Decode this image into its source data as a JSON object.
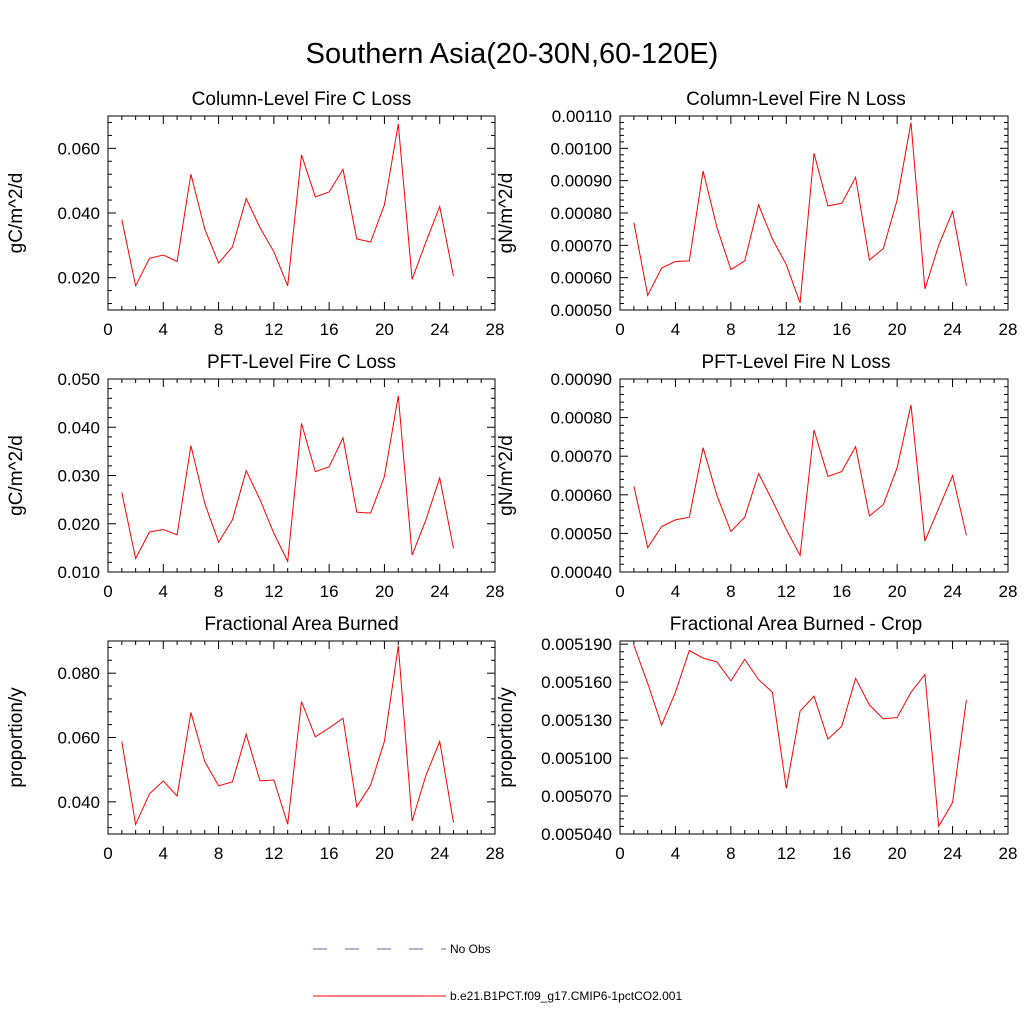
{
  "figure": {
    "title": "Southern Asia(20-30N,60-120E)"
  },
  "legend": [
    {
      "label": "No Obs",
      "color": "#6f6fa8",
      "dash": true
    },
    {
      "label": "b.e21.B1PCT.f09_g17.CMIP6-1pctCO2.001",
      "color": "#ff0000",
      "dash": false
    }
  ],
  "chart_data": [
    {
      "type": "line",
      "title": "Column-Level Fire C Loss",
      "ylabel": "gC/m^2/d",
      "xlim": [
        0,
        28
      ],
      "ylim": [
        0.01,
        0.07
      ],
      "xticks": [
        0,
        4,
        8,
        12,
        16,
        20,
        24,
        28
      ],
      "yticks": [
        0.02,
        0.04,
        0.06
      ],
      "ytick_labels": [
        "0.020",
        "0.040",
        "0.060"
      ],
      "x": [
        1,
        2,
        3,
        4,
        5,
        6,
        7,
        8,
        9,
        10,
        11,
        12,
        13,
        14,
        15,
        16,
        17,
        18,
        19,
        20,
        21,
        22,
        23,
        24,
        25
      ],
      "series": [
        {
          "name": "b.e21.B1PCT.f09_g17.CMIP6-1pctCO2.001",
          "color": "#ff0000",
          "values": [
            0.038,
            0.0175,
            0.026,
            0.027,
            0.025,
            0.052,
            0.035,
            0.0245,
            0.0295,
            0.0445,
            0.0355,
            0.028,
            0.0175,
            0.058,
            0.045,
            0.0465,
            0.0535,
            0.032,
            0.031,
            0.0425,
            0.0675,
            0.0195,
            0.031,
            0.042,
            0.0205
          ]
        }
      ]
    },
    {
      "type": "line",
      "title": "Column-Level Fire N Loss",
      "ylabel": "gN/m^2/d",
      "xlim": [
        0,
        28
      ],
      "ylim": [
        0.0005,
        0.0011
      ],
      "xticks": [
        0,
        4,
        8,
        12,
        16,
        20,
        24,
        28
      ],
      "yticks": [
        0.0005,
        0.0006,
        0.0007,
        0.0008,
        0.0009,
        0.001,
        0.0011
      ],
      "ytick_labels": [
        "0.00050",
        "0.00060",
        "0.00070",
        "0.00080",
        "0.00090",
        "0.00100",
        "0.00110"
      ],
      "x": [
        1,
        2,
        3,
        4,
        5,
        6,
        7,
        8,
        9,
        10,
        11,
        12,
        13,
        14,
        15,
        16,
        17,
        18,
        19,
        20,
        21,
        22,
        23,
        24,
        25
      ],
      "series": [
        {
          "name": "b.e21.B1PCT.f09_g17.CMIP6-1pctCO2.001",
          "color": "#ff0000",
          "values": [
            0.00077,
            0.000545,
            0.00063,
            0.00065,
            0.000652,
            0.00093,
            0.000755,
            0.000625,
            0.000652,
            0.000825,
            0.00072,
            0.00064,
            0.000522,
            0.000985,
            0.000822,
            0.00083,
            0.00091,
            0.000655,
            0.00069,
            0.00084,
            0.00108,
            0.000565,
            0.0007,
            0.000805,
            0.000575
          ]
        }
      ]
    },
    {
      "type": "line",
      "title": "PFT-Level Fire C Loss",
      "ylabel": "gC/m^2/d",
      "xlim": [
        0,
        28
      ],
      "ylim": [
        0.01,
        0.05
      ],
      "xticks": [
        0,
        4,
        8,
        12,
        16,
        20,
        24,
        28
      ],
      "yticks": [
        0.01,
        0.02,
        0.03,
        0.04,
        0.05
      ],
      "ytick_labels": [
        "0.010",
        "0.020",
        "0.030",
        "0.040",
        "0.050"
      ],
      "x": [
        1,
        2,
        3,
        4,
        5,
        6,
        7,
        8,
        9,
        10,
        11,
        12,
        13,
        14,
        15,
        16,
        17,
        18,
        19,
        20,
        21,
        22,
        23,
        24,
        25
      ],
      "series": [
        {
          "name": "b.e21.B1PCT.f09_g17.CMIP6-1pctCO2.001",
          "color": "#ff0000",
          "values": [
            0.0265,
            0.0128,
            0.0183,
            0.0188,
            0.0177,
            0.0362,
            0.0242,
            0.0162,
            0.0208,
            0.031,
            0.025,
            0.018,
            0.0122,
            0.0408,
            0.0308,
            0.0318,
            0.0378,
            0.0224,
            0.0222,
            0.0298,
            0.0465,
            0.0135,
            0.0208,
            0.0295,
            0.0149
          ]
        }
      ]
    },
    {
      "type": "line",
      "title": "PFT-Level Fire N Loss",
      "ylabel": "gN/m^2/d",
      "xlim": [
        0,
        28
      ],
      "ylim": [
        0.0004,
        0.0009
      ],
      "xticks": [
        0,
        4,
        8,
        12,
        16,
        20,
        24,
        28
      ],
      "yticks": [
        0.0004,
        0.0005,
        0.0006,
        0.0007,
        0.0008,
        0.0009
      ],
      "ytick_labels": [
        "0.00040",
        "0.00050",
        "0.00060",
        "0.00070",
        "0.00080",
        "0.00090"
      ],
      "x": [
        1,
        2,
        3,
        4,
        5,
        6,
        7,
        8,
        9,
        10,
        11,
        12,
        13,
        14,
        15,
        16,
        17,
        18,
        19,
        20,
        21,
        22,
        23,
        24,
        25
      ],
      "series": [
        {
          "name": "b.e21.B1PCT.f09_g17.CMIP6-1pctCO2.001",
          "color": "#ff0000",
          "values": [
            0.000622,
            0.000463,
            0.000518,
            0.000535,
            0.000542,
            0.000722,
            0.000598,
            0.000505,
            0.000542,
            0.000655,
            0.000585,
            0.00051,
            0.000443,
            0.000768,
            0.000648,
            0.00066,
            0.000725,
            0.000545,
            0.000575,
            0.00067,
            0.000833,
            0.00048,
            0.000565,
            0.00065,
            0.000495
          ]
        }
      ]
    },
    {
      "type": "line",
      "title": "Fractional Area Burned",
      "ylabel": "proportion/y",
      "xlim": [
        0,
        28
      ],
      "ylim": [
        0.03,
        0.09
      ],
      "xticks": [
        0,
        4,
        8,
        12,
        16,
        20,
        24,
        28
      ],
      "yticks": [
        0.04,
        0.06,
        0.08
      ],
      "ytick_labels": [
        "0.040",
        "0.060",
        "0.080"
      ],
      "x": [
        1,
        2,
        3,
        4,
        5,
        6,
        7,
        8,
        9,
        10,
        11,
        12,
        13,
        14,
        15,
        16,
        17,
        18,
        19,
        20,
        21,
        22,
        23,
        24,
        25
      ],
      "series": [
        {
          "name": "b.e21.B1PCT.f09_g17.CMIP6-1pctCO2.001",
          "color": "#ff0000",
          "values": [
            0.0588,
            0.033,
            0.0425,
            0.0465,
            0.0418,
            0.0678,
            0.0525,
            0.045,
            0.0462,
            0.061,
            0.0465,
            0.0468,
            0.033,
            0.0712,
            0.0602,
            0.063,
            0.066,
            0.0385,
            0.0452,
            0.0588,
            0.0885,
            0.034,
            0.0482,
            0.0588,
            0.0335
          ]
        }
      ]
    },
    {
      "type": "line",
      "title": "Fractional Area Burned - Crop",
      "ylabel": "proportion/y",
      "xlim": [
        0,
        28
      ],
      "ylim": [
        0.00504,
        0.0051925
      ],
      "xticks": [
        0,
        4,
        8,
        12,
        16,
        20,
        24,
        28
      ],
      "yticks": [
        0.00504,
        0.00507,
        0.0051,
        0.00513,
        0.00516,
        0.00519
      ],
      "ytick_labels": [
        "0.005040",
        "0.005070",
        "0.005100",
        "0.005130",
        "0.005160",
        "0.005190"
      ],
      "x": [
        1,
        2,
        3,
        4,
        5,
        6,
        7,
        8,
        9,
        10,
        11,
        12,
        13,
        14,
        15,
        16,
        17,
        18,
        19,
        20,
        21,
        22,
        23,
        24,
        25
      ],
      "series": [
        {
          "name": "b.e21.B1PCT.f09_g17.CMIP6-1pctCO2.001",
          "color": "#ff0000",
          "values": [
            0.005189,
            0.005159,
            0.005126,
            0.005152,
            0.005185,
            0.005179,
            0.005176,
            0.005161,
            0.005178,
            0.005162,
            0.005152,
            0.005076,
            0.005137,
            0.005149,
            0.005115,
            0.005125,
            0.005163,
            0.005142,
            0.005131,
            0.005132,
            0.005152,
            0.005166,
            0.005046,
            0.005065,
            0.005146
          ]
        }
      ]
    }
  ]
}
